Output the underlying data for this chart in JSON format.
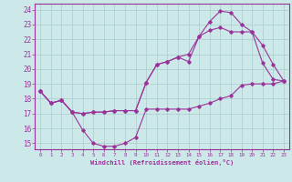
{
  "xlabel": "Windchill (Refroidissement éolien,°C)",
  "bg_color": "#cce8e8",
  "grid_color": "#aacccc",
  "line_color": "#993399",
  "xlim": [
    -0.5,
    23.5
  ],
  "ylim": [
    14.6,
    24.4
  ],
  "yticks": [
    15,
    16,
    17,
    18,
    19,
    20,
    21,
    22,
    23,
    24
  ],
  "xticks": [
    0,
    1,
    2,
    3,
    4,
    5,
    6,
    7,
    8,
    9,
    10,
    11,
    12,
    13,
    14,
    15,
    16,
    17,
    18,
    19,
    20,
    21,
    22,
    23
  ],
  "line1_x": [
    0,
    1,
    2,
    3,
    4,
    5,
    6,
    7,
    8,
    9,
    10,
    11,
    12,
    13,
    14,
    15,
    16,
    17,
    18,
    19,
    20,
    21,
    22,
    23
  ],
  "line1_y": [
    18.5,
    17.7,
    17.9,
    17.1,
    15.9,
    15.0,
    14.8,
    14.8,
    15.0,
    15.4,
    17.3,
    17.3,
    17.3,
    17.3,
    17.3,
    17.5,
    17.7,
    18.0,
    18.2,
    18.9,
    19.0,
    19.0,
    19.0,
    19.2
  ],
  "line2_x": [
    0,
    1,
    2,
    3,
    4,
    5,
    6,
    7,
    8,
    9,
    10,
    11,
    12,
    13,
    14,
    15,
    16,
    17,
    18,
    19,
    20,
    21,
    22,
    23
  ],
  "line2_y": [
    18.5,
    17.7,
    17.9,
    17.1,
    17.0,
    17.1,
    17.1,
    17.2,
    17.2,
    17.2,
    19.1,
    20.3,
    20.5,
    20.8,
    21.0,
    22.2,
    22.6,
    22.8,
    22.5,
    22.5,
    22.5,
    21.6,
    20.3,
    19.2
  ],
  "line3_x": [
    0,
    1,
    2,
    3,
    4,
    5,
    6,
    7,
    8,
    9,
    10,
    11,
    12,
    13,
    14,
    15,
    16,
    17,
    18,
    19,
    20,
    21,
    22,
    23
  ],
  "line3_y": [
    18.5,
    17.7,
    17.9,
    17.1,
    17.0,
    17.1,
    17.1,
    17.2,
    17.2,
    17.2,
    19.1,
    20.3,
    20.5,
    20.8,
    20.5,
    22.2,
    23.2,
    23.9,
    23.8,
    23.0,
    22.5,
    20.4,
    19.3,
    19.2
  ]
}
